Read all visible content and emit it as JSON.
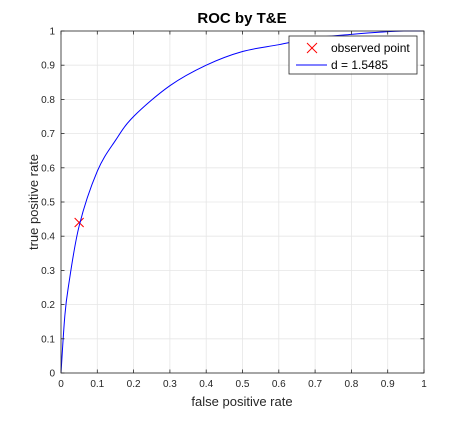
{
  "chart_data": {
    "type": "line",
    "title": "ROC by T&E",
    "xlabel": "false positive rate",
    "ylabel": "true positive rate",
    "xlim": [
      0,
      1
    ],
    "ylim": [
      0,
      1
    ],
    "xticks": [
      "0",
      "0.1",
      "0.2",
      "0.3",
      "0.4",
      "0.5",
      "0.6",
      "0.7",
      "0.8",
      "0.9",
      "1"
    ],
    "yticks": [
      "0",
      "0.1",
      "0.2",
      "0.3",
      "0.4",
      "0.5",
      "0.6",
      "0.7",
      "0.8",
      "0.9",
      "1"
    ],
    "grid": true,
    "legend_position": "top-right",
    "series": [
      {
        "name": "observed point",
        "kind": "marker",
        "marker": "x",
        "color": "#ff0000",
        "x": [
          0.05
        ],
        "y": [
          0.44
        ]
      },
      {
        "name": "d = 1.5485",
        "kind": "line",
        "color": "#0000ff",
        "x": [
          0,
          0.01,
          0.02,
          0.05,
          0.1,
          0.15,
          0.2,
          0.3,
          0.4,
          0.5,
          0.6,
          0.7,
          0.8,
          0.9,
          0.95,
          1
        ],
        "y": [
          0,
          0.16,
          0.25,
          0.43,
          0.59,
          0.68,
          0.75,
          0.84,
          0.9,
          0.94,
          0.96,
          0.98,
          0.99,
          0.998,
          1.0,
          1.0
        ]
      }
    ]
  }
}
